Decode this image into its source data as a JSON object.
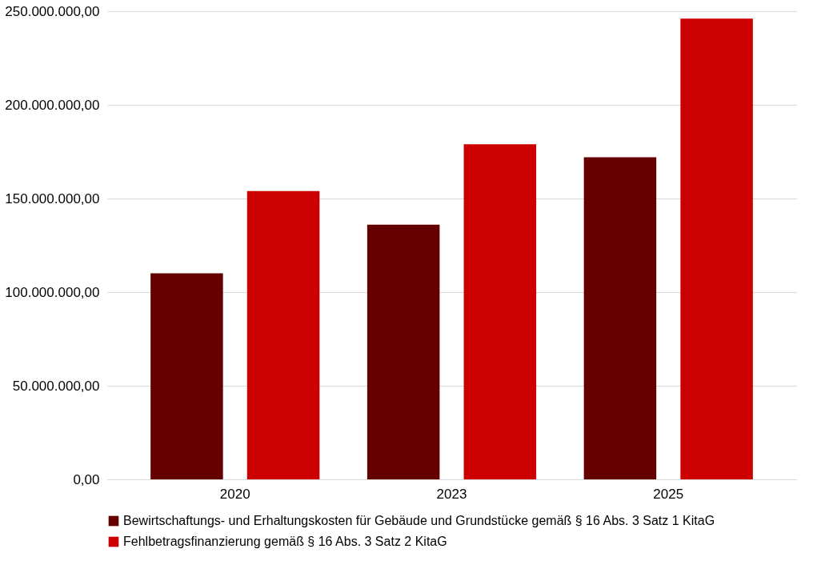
{
  "chart_data": {
    "type": "bar",
    "categories": [
      "2020",
      "2023",
      "2025"
    ],
    "series": [
      {
        "name": "Bewirtschaftungs- und Erhaltungskosten für Gebäude und Grundstücke gemäß § 16 Abs. 3 Satz 1 KitaG",
        "color": "#640000",
        "values": [
          110000000,
          136000000,
          172000000
        ]
      },
      {
        "name": "Fehlbetragsfinanzierung  gemäß § 16 Abs. 3 Satz 2 KitaG",
        "color": "#cc0000",
        "values": [
          154000000,
          179000000,
          246000000
        ]
      }
    ],
    "ylim": [
      0,
      250000000
    ],
    "yticks": [
      {
        "value": 0,
        "label": "0,00"
      },
      {
        "value": 50000000,
        "label": "50.000.000,00"
      },
      {
        "value": 100000000,
        "label": "100.000.000,00"
      },
      {
        "value": 150000000,
        "label": "150.000.000,00"
      },
      {
        "value": 200000000,
        "label": "200.000.000,00"
      },
      {
        "value": 250000000,
        "label": "250.000.000,00"
      }
    ],
    "grid": "y",
    "legend": "bottom"
  }
}
